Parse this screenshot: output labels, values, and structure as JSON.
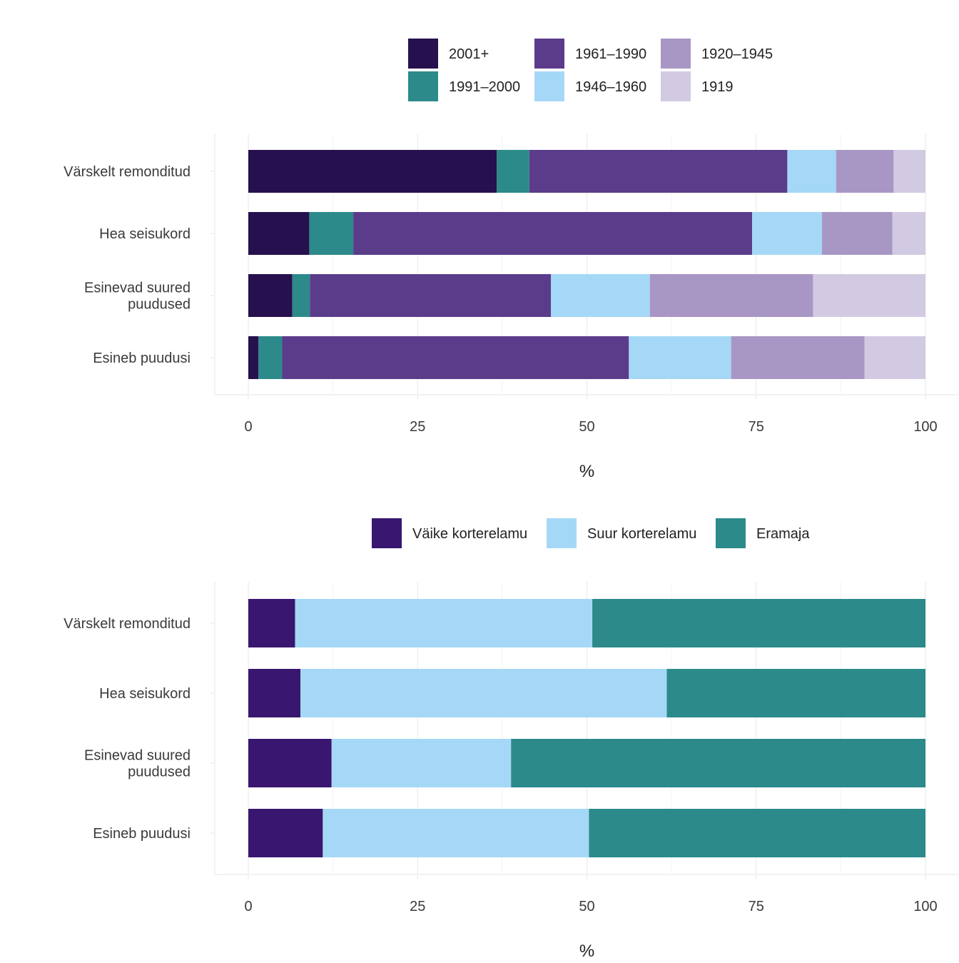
{
  "chart_data": [
    {
      "type": "bar",
      "orientation": "horizontal",
      "stacked": true,
      "categories": [
        "Värskelt remonditud",
        "Hea seisukord",
        "Esinevad suured\npuudused",
        "Esineb puudusi"
      ],
      "series": [
        {
          "name": "2001+",
          "color": "#27104e",
          "values": [
            36.7,
            9.0,
            6.5,
            1.5
          ]
        },
        {
          "name": "1991–2000",
          "color": "#2c8a8a",
          "values": [
            4.8,
            6.5,
            2.6,
            3.5
          ]
        },
        {
          "name": "1961–1990",
          "color": "#5b3c8a",
          "values": [
            38.1,
            58.9,
            35.6,
            51.2
          ]
        },
        {
          "name": "1946–1960",
          "color": "#a5d8f6",
          "values": [
            7.2,
            10.3,
            14.6,
            15.1
          ]
        },
        {
          "name": "1920–1945",
          "color": "#a897c4",
          "values": [
            8.5,
            10.4,
            24.1,
            19.7
          ]
        },
        {
          "name": "1919",
          "color": "#d2cae2",
          "values": [
            4.7,
            4.9,
            16.6,
            9.0
          ]
        }
      ],
      "xlabel": "%",
      "xlim": [
        0,
        100
      ],
      "xticks": [
        0,
        25,
        50,
        75,
        100
      ],
      "legend_position": "top",
      "grid": true
    },
    {
      "type": "bar",
      "orientation": "horizontal",
      "stacked": true,
      "categories": [
        "Värskelt remonditud",
        "Hea seisukord",
        "Esinevad suured\npuudused",
        "Esineb puudusi"
      ],
      "series": [
        {
          "name": "Väike korterelamu",
          "color": "#39166f",
          "values": [
            6.9,
            7.7,
            12.3,
            11.0
          ]
        },
        {
          "name": "Suur korterelamu",
          "color": "#a5d8f6",
          "values": [
            43.9,
            54.1,
            26.5,
            39.3
          ]
        },
        {
          "name": "Eramaja",
          "color": "#2c8a8a",
          "values": [
            49.2,
            38.2,
            61.2,
            49.7
          ]
        }
      ],
      "xlabel": "%",
      "xlim": [
        0,
        100
      ],
      "xticks": [
        0,
        25,
        50,
        75,
        100
      ],
      "legend_position": "top",
      "grid": true
    }
  ]
}
